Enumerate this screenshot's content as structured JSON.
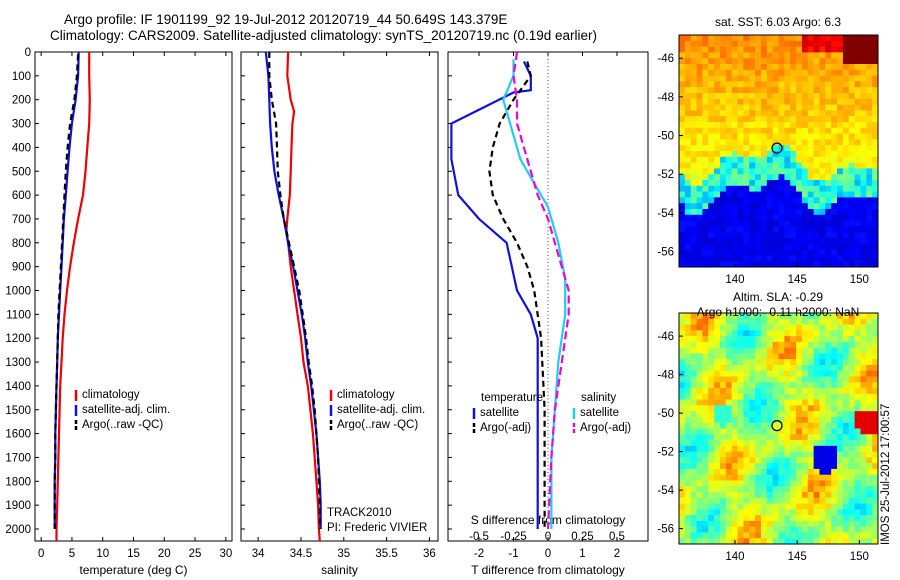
{
  "header": {
    "line1": "Argo profile: IF 1901199_92 19-Jul-2012 20120719_44 50.649S 143.379E",
    "line2": "Climatology: CARS2009. Satellite-adjusted climatology: synTS_20120719.nc (0.19d earlier)"
  },
  "side_labels": {
    "track": "TRACK2010",
    "pi": "PI: Frederic VIVIER",
    "footer": "IMOS 25-Jul-2012 17:00:57"
  },
  "colors": {
    "red": "#ee0000",
    "blue": "#1010dd",
    "black": "#000000",
    "cyan": "#22ccee",
    "magenta": "#ee00dd"
  },
  "chart_data": [
    {
      "type": "line",
      "xlabel": "temperature (deg C)",
      "ylabel": "",
      "xlim": [
        -1,
        31
      ],
      "ylim": [
        2050,
        0
      ],
      "xticks": [
        0,
        5,
        10,
        15,
        20,
        25,
        30
      ],
      "yticks": [
        0,
        100,
        200,
        300,
        400,
        500,
        600,
        700,
        800,
        900,
        1000,
        1100,
        1200,
        1300,
        1400,
        1500,
        1600,
        1700,
        1800,
        1900,
        2000
      ],
      "legend": [
        "climatology",
        "satellite-adj. clim.",
        "Argo(..raw -QC)"
      ],
      "legend_position": "lower-center",
      "series": [
        {
          "name": "climatology",
          "color": "red",
          "dash": "",
          "points": [
            [
              7.8,
              0
            ],
            [
              7.8,
              100
            ],
            [
              7.9,
              200
            ],
            [
              7.8,
              300
            ],
            [
              7.5,
              400
            ],
            [
              7.2,
              500
            ],
            [
              6.8,
              600
            ],
            [
              6.0,
              700
            ],
            [
              5.3,
              800
            ],
            [
              4.7,
              900
            ],
            [
              4.2,
              1000
            ],
            [
              3.8,
              1100
            ],
            [
              3.5,
              1200
            ],
            [
              3.3,
              1300
            ],
            [
              3.1,
              1400
            ],
            [
              3.0,
              1500
            ],
            [
              2.9,
              1600
            ],
            [
              2.8,
              1700
            ],
            [
              2.7,
              1800
            ],
            [
              2.6,
              1900
            ],
            [
              2.5,
              2000
            ],
            [
              2.5,
              2050
            ]
          ]
        },
        {
          "name": "satellite-adj. clim.",
          "color": "blue",
          "dash": "",
          "points": [
            [
              6.1,
              0
            ],
            [
              6.0,
              100
            ],
            [
              5.6,
              200
            ],
            [
              5.0,
              300
            ],
            [
              4.6,
              400
            ],
            [
              4.3,
              500
            ],
            [
              4.0,
              600
            ],
            [
              3.7,
              700
            ],
            [
              3.5,
              800
            ],
            [
              3.3,
              900
            ],
            [
              3.1,
              1000
            ],
            [
              2.9,
              1100
            ],
            [
              2.7,
              1200
            ],
            [
              2.6,
              1300
            ],
            [
              2.5,
              1400
            ],
            [
              2.4,
              1500
            ],
            [
              2.3,
              1600
            ],
            [
              2.3,
              1700
            ],
            [
              2.2,
              1800
            ],
            [
              2.2,
              1900
            ],
            [
              2.2,
              2000
            ]
          ]
        },
        {
          "name": "Argo(..raw -QC)",
          "color": "black",
          "dash": "6 4",
          "points": [
            [
              6.0,
              10
            ],
            [
              5.8,
              100
            ],
            [
              5.4,
              200
            ],
            [
              4.7,
              300
            ],
            [
              4.3,
              400
            ],
            [
              4.0,
              500
            ],
            [
              3.8,
              600
            ],
            [
              3.6,
              700
            ],
            [
              3.4,
              800
            ],
            [
              3.2,
              900
            ],
            [
              3.0,
              1000
            ],
            [
              2.8,
              1100
            ],
            [
              2.7,
              1200
            ],
            [
              2.6,
              1300
            ],
            [
              2.5,
              1400
            ],
            [
              2.4,
              1500
            ],
            [
              2.3,
              1600
            ],
            [
              2.3,
              1700
            ],
            [
              2.2,
              1800
            ],
            [
              2.2,
              1900
            ],
            [
              2.2,
              2000
            ]
          ]
        }
      ]
    },
    {
      "type": "line",
      "xlabel": "salinity",
      "ylabel": "",
      "xlim": [
        33.8,
        36.1
      ],
      "ylim": [
        2050,
        0
      ],
      "xticks": [
        34,
        34.5,
        35,
        35.5,
        36
      ],
      "legend": [
        "climatology",
        "satellite-adj. clim.",
        "Argo(..raw -QC)"
      ],
      "legend_position": "lower-right",
      "series": [
        {
          "name": "climatology",
          "color": "red",
          "dash": "",
          "points": [
            [
              34.35,
              0
            ],
            [
              34.34,
              100
            ],
            [
              34.38,
              200
            ],
            [
              34.42,
              250
            ],
            [
              34.4,
              300
            ],
            [
              34.39,
              400
            ],
            [
              34.38,
              500
            ],
            [
              34.37,
              600
            ],
            [
              34.34,
              700
            ],
            [
              34.33,
              750
            ],
            [
              34.35,
              800
            ],
            [
              34.38,
              900
            ],
            [
              34.42,
              1000
            ],
            [
              34.46,
              1100
            ],
            [
              34.5,
              1200
            ],
            [
              34.53,
              1300
            ],
            [
              34.58,
              1400
            ],
            [
              34.61,
              1500
            ],
            [
              34.64,
              1600
            ],
            [
              34.66,
              1700
            ],
            [
              34.68,
              1800
            ],
            [
              34.7,
              1900
            ],
            [
              34.71,
              2000
            ],
            [
              34.72,
              2050
            ]
          ]
        },
        {
          "name": "satellite-adj. clim.",
          "color": "blue",
          "dash": "",
          "points": [
            [
              34.09,
              0
            ],
            [
              34.12,
              100
            ],
            [
              34.13,
              200
            ],
            [
              34.14,
              300
            ],
            [
              34.16,
              400
            ],
            [
              34.19,
              500
            ],
            [
              34.24,
              600
            ],
            [
              34.3,
              700
            ],
            [
              34.35,
              800
            ],
            [
              34.41,
              900
            ],
            [
              34.46,
              1000
            ],
            [
              34.51,
              1100
            ],
            [
              34.55,
              1200
            ],
            [
              34.58,
              1300
            ],
            [
              34.62,
              1400
            ],
            [
              34.65,
              1500
            ],
            [
              34.68,
              1600
            ],
            [
              34.7,
              1700
            ],
            [
              34.72,
              1800
            ],
            [
              34.73,
              1900
            ],
            [
              34.73,
              2000
            ]
          ]
        },
        {
          "name": "Argo(..raw -QC)",
          "color": "black",
          "dash": "6 4",
          "points": [
            [
              34.13,
              0
            ],
            [
              34.13,
              100
            ],
            [
              34.16,
              200
            ],
            [
              34.21,
              300
            ],
            [
              34.22,
              400
            ],
            [
              34.23,
              500
            ],
            [
              34.26,
              600
            ],
            [
              34.3,
              700
            ],
            [
              34.36,
              800
            ],
            [
              34.42,
              900
            ],
            [
              34.48,
              1000
            ],
            [
              34.52,
              1100
            ],
            [
              34.56,
              1200
            ],
            [
              34.59,
              1300
            ],
            [
              34.63,
              1400
            ],
            [
              34.66,
              1500
            ],
            [
              34.68,
              1600
            ],
            [
              34.7,
              1700
            ],
            [
              34.71,
              1800
            ],
            [
              34.72,
              1900
            ],
            [
              34.72,
              2000
            ]
          ]
        }
      ]
    },
    {
      "type": "line",
      "xlabel": "T difference from climatology",
      "xlabel_top": "S difference from climatology",
      "xlim": [
        -2.9,
        2.9
      ],
      "ylim": [
        2050,
        0
      ],
      "xticks": [
        -2,
        -1,
        0,
        1,
        2
      ],
      "top_ticks": [
        {
          "v": -2.0,
          "label": "-0.5"
        },
        {
          "v": -1.0,
          "label": "-0.25"
        },
        {
          "v": 0.0,
          "label": "0"
        },
        {
          "v": 1.0,
          "label": "0.25"
        },
        {
          "v": 2.0,
          "label": "0.5"
        }
      ],
      "legend": [
        "temperature",
        "satellite",
        "Argo(-adj)",
        "salinity",
        "satellite",
        "Argo(-adj)"
      ],
      "series": [
        {
          "name": "temperature satellite",
          "color": "blue",
          "dash": "",
          "points": [
            [
              -0.7,
              40
            ],
            [
              -0.5,
              100
            ],
            [
              -0.5,
              160
            ],
            [
              -1.0,
              170
            ],
            [
              -2.8,
              300
            ],
            [
              -2.8,
              450
            ],
            [
              -2.6,
              600
            ],
            [
              -2.0,
              700
            ],
            [
              -1.2,
              800
            ],
            [
              -0.9,
              1000
            ],
            [
              -0.5,
              1100
            ],
            [
              -0.3,
              1200
            ],
            [
              -0.3,
              1400
            ],
            [
              -0.3,
              1700
            ],
            [
              -0.3,
              2000
            ]
          ]
        },
        {
          "name": "temperature Argo(-adj)",
          "color": "black",
          "dash": "6 4",
          "points": [
            [
              -0.6,
              40
            ],
            [
              -0.5,
              100
            ],
            [
              -1.0,
              200
            ],
            [
              -1.4,
              300
            ],
            [
              -1.6,
              400
            ],
            [
              -1.7,
              500
            ],
            [
              -1.6,
              600
            ],
            [
              -1.3,
              700
            ],
            [
              -0.9,
              800
            ],
            [
              -0.6,
              900
            ],
            [
              -0.4,
              1000
            ],
            [
              -0.2,
              1200
            ],
            [
              -0.1,
              1500
            ],
            [
              -0.1,
              1800
            ],
            [
              -0.1,
              2000
            ]
          ]
        },
        {
          "name": "salinity satellite",
          "color": "cyan",
          "dash": "",
          "points": [
            [
              -1.0,
              30
            ],
            [
              -1.0,
              100
            ],
            [
              -1.3,
              200
            ],
            [
              -1.1,
              300
            ],
            [
              -0.8,
              450
            ],
            [
              -0.4,
              550
            ],
            [
              0.0,
              650
            ],
            [
              0.3,
              800
            ],
            [
              0.5,
              950
            ],
            [
              0.5,
              1100
            ],
            [
              0.3,
              1300
            ],
            [
              0.2,
              1500
            ],
            [
              0.1,
              1700
            ],
            [
              0.1,
              2000
            ]
          ]
        },
        {
          "name": "salinity Argo(-adj)",
          "color": "magenta",
          "dash": "8 4",
          "points": [
            [
              -0.9,
              0
            ],
            [
              -1.0,
              100
            ],
            [
              -0.9,
              200
            ],
            [
              -0.9,
              300
            ],
            [
              -0.6,
              450
            ],
            [
              -0.3,
              600
            ],
            [
              0.0,
              700
            ],
            [
              0.3,
              850
            ],
            [
              0.6,
              1000
            ],
            [
              0.6,
              1100
            ],
            [
              0.4,
              1300
            ],
            [
              0.2,
              1500
            ],
            [
              0.1,
              1700
            ],
            [
              0.0,
              2000
            ]
          ]
        }
      ]
    },
    {
      "type": "heatmap",
      "title": "sat. SST: 6.03  Argo: 6.3",
      "xlim": [
        135.5,
        151.5
      ],
      "ylim": [
        -56.8,
        -44.8
      ],
      "xticks": [
        140,
        145,
        150
      ],
      "yticks": [
        -46,
        -48,
        -50,
        -52,
        -54,
        -56
      ],
      "marker": {
        "lon": 143.38,
        "lat": -50.65
      },
      "colormap": "jet"
    },
    {
      "type": "heatmap",
      "title": "Altim. SLA: -0.29",
      "subtitle": "Argo h1000: -0.11 h2000: NaN",
      "xlim": [
        135.5,
        151.5
      ],
      "ylim": [
        -56.8,
        -44.8
      ],
      "xticks": [
        140,
        145,
        150
      ],
      "yticks": [
        -46,
        -48,
        -50,
        -52,
        -54,
        -56
      ],
      "marker": {
        "lon": 143.38,
        "lat": -50.65
      },
      "colormap": "jet"
    }
  ]
}
